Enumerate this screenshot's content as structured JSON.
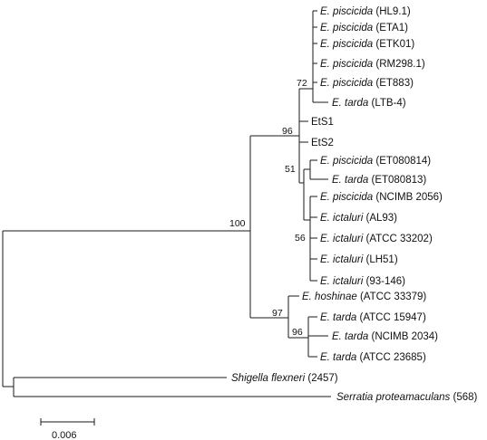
{
  "leaves": [
    {
      "id": "hl91",
      "species": "E. piscicida",
      "strain": "(HL9.1)"
    },
    {
      "id": "eta1",
      "species": "E. piscicida",
      "strain": "(ETA1)"
    },
    {
      "id": "etk01",
      "species": "E. piscicida",
      "strain": "(ETK01)"
    },
    {
      "id": "rm2981",
      "species": "E. piscicida",
      "strain": "(RM298.1)"
    },
    {
      "id": "et883",
      "species": "E. piscicida",
      "strain": "(ET883)"
    },
    {
      "id": "ltb4",
      "species": "E. tarda",
      "strain": "(LTB-4)"
    },
    {
      "id": "ets1",
      "species": "",
      "strain": "EtS1"
    },
    {
      "id": "ets2",
      "species": "",
      "strain": "EtS2"
    },
    {
      "id": "et080814",
      "species": "E. piscicida",
      "strain": "(ET080814)"
    },
    {
      "id": "et080813",
      "species": "E. tarda",
      "strain": "(ET080813)"
    },
    {
      "id": "ncimb2056",
      "species": "E. piscicida",
      "strain": "(NCIMB 2056)"
    },
    {
      "id": "al93",
      "species": "E. ictaluri",
      "strain": "(AL93)"
    },
    {
      "id": "atcc33202",
      "species": "E. ictaluri",
      "strain": "(ATCC 33202)"
    },
    {
      "id": "lh51",
      "species": "E. ictaluri",
      "strain": "(LH51)"
    },
    {
      "id": "e93146",
      "species": "E. ictaluri",
      "strain": "(93-146)"
    },
    {
      "id": "hoshinae",
      "species": "E. hoshinae",
      "strain": "(ATCC 33379)"
    },
    {
      "id": "atcc15947",
      "species": "E. tarda",
      "strain": "(ATCC 15947)"
    },
    {
      "id": "ncimb2034",
      "species": "E. tarda",
      "strain": "(NCIMB 2034)"
    },
    {
      "id": "atcc23685",
      "species": "E. tarda",
      "strain": "(ATCC 23685)"
    },
    {
      "id": "shigella",
      "species": "Shigella flexneri",
      "strain": "(2457)"
    },
    {
      "id": "serratia",
      "species": "Serratia proteamaculans",
      "strain": "(568)"
    }
  ],
  "bootstrap": {
    "n72": "72",
    "n96a": "96",
    "n51": "51",
    "n100": "100",
    "n56": "56",
    "n97": "97",
    "n96b": "96"
  },
  "scale_bar": {
    "label": "0.006"
  },
  "colors": {
    "line": "#1a1a1a",
    "text": "#111111",
    "background": "#ffffff"
  }
}
